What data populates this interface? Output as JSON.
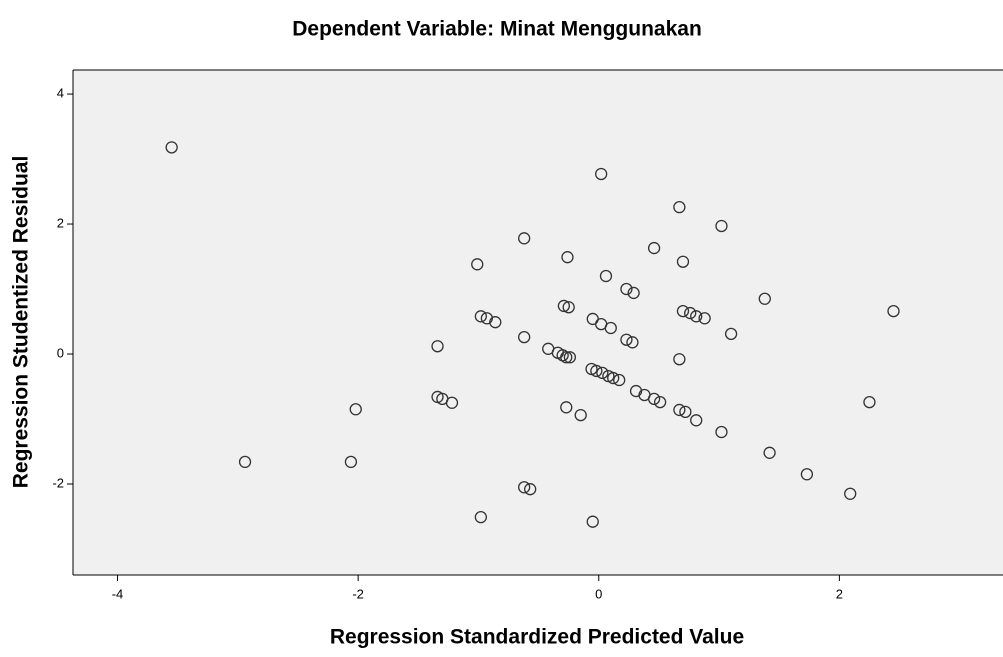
{
  "chart_data": {
    "type": "scatter",
    "title": "Dependent Variable: Minat Menggunakan",
    "x_label": "Regression Standardized Predicted Value",
    "y_label": "Regression Studentized Residual",
    "color": "#333333",
    "xlim": [
      -4.37,
      3.36
    ],
    "ylim": [
      -3.4,
      4.37
    ],
    "xticks": [
      -4,
      -2,
      0,
      2
    ],
    "yticks": [
      -2,
      0,
      2,
      4
    ],
    "x": [
      -3.55,
      -2.94,
      -2.06,
      -2.02,
      -1.34,
      -1.34,
      -1.3,
      -1.22,
      -1.01,
      -0.98,
      -0.93,
      -0.86,
      -0.98,
      -0.62,
      -0.62,
      -0.62,
      -0.57,
      -0.42,
      -0.34,
      -0.3,
      -0.27,
      -0.24,
      -0.29,
      -0.25,
      -0.26,
      -0.27,
      -0.15,
      0.02,
      -0.05,
      -0.06,
      -0.02,
      0.03,
      0.08,
      0.12,
      0.17,
      -0.05,
      0.02,
      0.1,
      0.06,
      0.23,
      0.29,
      0.23,
      0.28,
      0.31,
      0.38,
      0.46,
      0.51,
      0.46,
      0.67,
      0.67,
      0.7,
      0.67,
      0.72,
      0.7,
      0.76,
      0.81,
      0.88,
      0.81,
      1.02,
      1.02,
      1.1,
      1.38,
      1.42,
      1.73,
      2.09,
      2.25,
      2.45
    ],
    "values": [
      3.18,
      -1.66,
      -1.66,
      -0.85,
      0.12,
      -0.66,
      -0.69,
      -0.75,
      1.38,
      0.58,
      0.55,
      0.49,
      -2.51,
      1.78,
      0.26,
      -2.05,
      -2.08,
      0.08,
      0.02,
      -0.02,
      -0.05,
      -0.05,
      0.74,
      0.72,
      1.49,
      -0.82,
      -0.94,
      2.77,
      -2.58,
      -0.23,
      -0.26,
      -0.29,
      -0.34,
      -0.37,
      -0.4,
      0.54,
      0.46,
      0.4,
      1.2,
      1.0,
      0.94,
      0.22,
      0.18,
      -0.57,
      -0.63,
      -0.69,
      -0.74,
      1.63,
      2.26,
      -0.08,
      1.42,
      -0.86,
      -0.89,
      0.66,
      0.63,
      0.58,
      0.55,
      -1.02,
      -1.2,
      1.97,
      0.31,
      0.85,
      -1.52,
      -1.85,
      -2.15,
      -0.74,
      0.66
    ]
  }
}
